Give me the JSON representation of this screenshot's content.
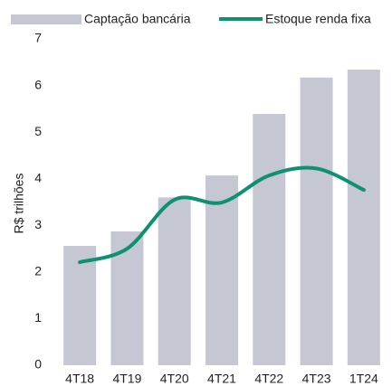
{
  "chart_data": {
    "type": "bar",
    "y_label": "R$ trilhões",
    "categories": [
      "4T18",
      "4T19",
      "4T20",
      "4T21",
      "4T22",
      "4T23",
      "1T24"
    ],
    "series": [
      {
        "name": "Captação bancária",
        "type": "bar",
        "color": "#c5c8d3",
        "values": [
          2.56,
          2.87,
          3.6,
          4.07,
          5.39,
          6.17,
          6.34
        ]
      },
      {
        "name": "Estoque renda fixa",
        "type": "line",
        "color": "#0e9170",
        "values": [
          2.21,
          2.5,
          3.55,
          3.49,
          4.07,
          4.22,
          3.76
        ]
      }
    ],
    "ylim": [
      0,
      7
    ],
    "yticks": [
      0,
      1,
      2,
      3,
      4,
      5,
      6,
      7
    ],
    "grid": false,
    "legend": "top"
  }
}
